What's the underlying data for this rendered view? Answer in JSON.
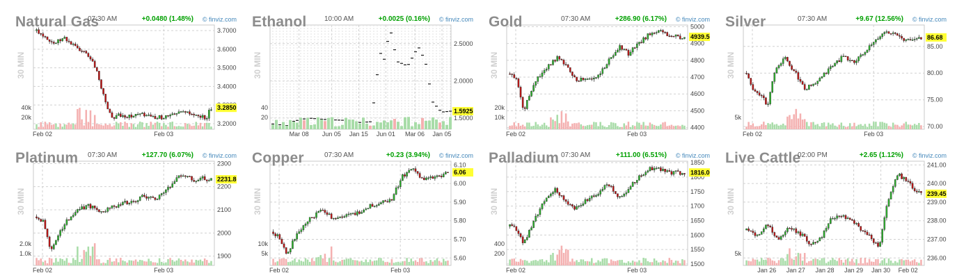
{
  "brand_label": "© finviz.com",
  "side_label": "30 MIN",
  "colors": {
    "up": "#2fb52f",
    "down": "#c41616",
    "vol_up": "#a8dca8",
    "vol_down": "#f4b0b0",
    "highlight": "#ffff33"
  },
  "chart_data": [
    {
      "type": "candlestick",
      "title": "Natural Gas",
      "time": "07:30 AM",
      "change": "+0.0480 (1.48%)",
      "yticks": [
        "3.7000",
        "3.6000",
        "3.5000",
        "3.4000",
        "3.3000",
        "3.2000"
      ],
      "ylim": [
        3.17,
        3.73
      ],
      "last": "3.2850",
      "last_value": 3.285,
      "xticks": [
        "Feb 02",
        "Feb 03"
      ],
      "xtick_pos": [
        0.05,
        0.72
      ],
      "vticks": [
        "40k",
        "20k"
      ],
      "path": [
        [
          0,
          3.7
        ],
        [
          0.05,
          3.67
        ],
        [
          0.1,
          3.63
        ],
        [
          0.16,
          3.66
        ],
        [
          0.21,
          3.62
        ],
        [
          0.28,
          3.58
        ],
        [
          0.34,
          3.5
        ],
        [
          0.4,
          3.3
        ],
        [
          0.44,
          3.22
        ],
        [
          0.47,
          3.25
        ],
        [
          0.53,
          3.24
        ],
        [
          0.6,
          3.25
        ],
        [
          0.68,
          3.23
        ],
        [
          0.76,
          3.24
        ],
        [
          0.84,
          3.26
        ],
        [
          0.92,
          3.24
        ],
        [
          0.97,
          3.23
        ],
        [
          1.0,
          3.285
        ]
      ]
    },
    {
      "type": "candlestick",
      "title": "Ethanol",
      "time": "10:00 AM",
      "change": "+0.0025 (0.16%)",
      "yticks": [
        "2.5000",
        "2.0000",
        "1.5000"
      ],
      "ylim": [
        1.35,
        2.75
      ],
      "last": "1.5925",
      "last_value": 1.5925,
      "xticks": [
        "Mar 08",
        "Jun 05",
        "Jan 15",
        "Jun 01",
        "Mar 06",
        "Jan 05"
      ],
      "xtick_pos": [
        0.16,
        0.34,
        0.49,
        0.64,
        0.8,
        0.95
      ],
      "vticks": [
        "40",
        "20"
      ],
      "path": [
        [
          0,
          1.42
        ],
        [
          0.08,
          1.4
        ],
        [
          0.12,
          1.46
        ],
        [
          0.2,
          1.5
        ],
        [
          0.3,
          1.48
        ],
        [
          0.4,
          1.47
        ],
        [
          0.48,
          1.44
        ],
        [
          0.55,
          1.45
        ],
        [
          0.58,
          1.86
        ],
        [
          0.6,
          2.4
        ],
        [
          0.63,
          2.28
        ],
        [
          0.66,
          2.72
        ],
        [
          0.7,
          2.26
        ],
        [
          0.76,
          2.2
        ],
        [
          0.82,
          2.46
        ],
        [
          0.86,
          2.26
        ],
        [
          0.9,
          1.72
        ],
        [
          0.95,
          1.58
        ],
        [
          1.0,
          1.5925
        ]
      ]
    },
    {
      "type": "candlestick",
      "title": "Gold",
      "time": "07:30 AM",
      "change": "+286.90 (6.17%)",
      "yticks": [
        "5000",
        "4900",
        "4800",
        "4700",
        "4600",
        "4500",
        "4400"
      ],
      "ylim": [
        4390,
        5010
      ],
      "last": "4939.50",
      "last_value": 4939.5,
      "xticks": [
        "Feb 02",
        "Feb 03"
      ],
      "xtick_pos": [
        0.05,
        0.72
      ],
      "vticks": [
        "20k",
        "10k"
      ],
      "path": [
        [
          0,
          4720
        ],
        [
          0.04,
          4690
        ],
        [
          0.08,
          4500
        ],
        [
          0.12,
          4620
        ],
        [
          0.16,
          4700
        ],
        [
          0.22,
          4770
        ],
        [
          0.28,
          4820
        ],
        [
          0.33,
          4750
        ],
        [
          0.38,
          4680
        ],
        [
          0.45,
          4690
        ],
        [
          0.52,
          4720
        ],
        [
          0.58,
          4820
        ],
        [
          0.63,
          4880
        ],
        [
          0.68,
          4840
        ],
        [
          0.74,
          4900
        ],
        [
          0.8,
          4960
        ],
        [
          0.85,
          4980
        ],
        [
          0.9,
          4950
        ],
        [
          0.95,
          4940
        ],
        [
          1.0,
          4939.5
        ]
      ]
    },
    {
      "type": "candlestick",
      "title": "Silver",
      "time": "07:30 AM",
      "change": "+9.67 (12.56%)",
      "yticks": [
        "85.00",
        "80.00",
        "75.00",
        "70.00"
      ],
      "ylim": [
        69.5,
        89
      ],
      "last": "86.68",
      "last_value": 86.68,
      "xticks": [
        "Feb 02",
        "Feb 03"
      ],
      "xtick_pos": [
        0.05,
        0.72
      ],
      "vticks": [
        "5k"
      ],
      "path": [
        [
          0,
          80
        ],
        [
          0.04,
          77
        ],
        [
          0.08,
          76
        ],
        [
          0.12,
          74
        ],
        [
          0.16,
          80
        ],
        [
          0.22,
          83
        ],
        [
          0.28,
          80
        ],
        [
          0.33,
          77
        ],
        [
          0.4,
          78
        ],
        [
          0.48,
          81
        ],
        [
          0.55,
          83
        ],
        [
          0.62,
          82
        ],
        [
          0.68,
          84
        ],
        [
          0.74,
          86
        ],
        [
          0.8,
          88
        ],
        [
          0.86,
          87
        ],
        [
          0.92,
          86
        ],
        [
          1.0,
          86.68
        ]
      ]
    },
    {
      "type": "candlestick",
      "title": "Platinum",
      "time": "07:30 AM",
      "change": "+127.70 (6.07%)",
      "yticks": [
        "2300",
        "2200",
        "2100",
        "2000",
        "1900"
      ],
      "ylim": [
        1860,
        2310
      ],
      "last": "2231.80",
      "last_value": 2231.8,
      "xticks": [
        "Feb 02",
        "Feb 03"
      ],
      "xtick_pos": [
        0.05,
        0.72
      ],
      "vticks": [
        "2.0k",
        "1.0k"
      ],
      "path": [
        [
          0,
          2070
        ],
        [
          0.04,
          2050
        ],
        [
          0.08,
          1930
        ],
        [
          0.12,
          1990
        ],
        [
          0.18,
          2060
        ],
        [
          0.24,
          2100
        ],
        [
          0.3,
          2120
        ],
        [
          0.36,
          2090
        ],
        [
          0.42,
          2110
        ],
        [
          0.5,
          2130
        ],
        [
          0.56,
          2140
        ],
        [
          0.62,
          2160
        ],
        [
          0.68,
          2140
        ],
        [
          0.74,
          2180
        ],
        [
          0.8,
          2240
        ],
        [
          0.85,
          2250
        ],
        [
          0.9,
          2230
        ],
        [
          0.95,
          2235
        ],
        [
          1.0,
          2231.8
        ]
      ]
    },
    {
      "type": "candlestick",
      "title": "Copper",
      "time": "07:30 AM",
      "change": "+0.23 (3.94%)",
      "yticks": [
        "6.10",
        "6.00",
        "5.90",
        "5.80",
        "5.70",
        "5.60"
      ],
      "ylim": [
        5.56,
        6.12
      ],
      "last": "6.06",
      "last_value": 6.06,
      "xticks": [
        "Feb 02",
        "Feb 03"
      ],
      "xtick_pos": [
        0.05,
        0.72
      ],
      "vticks": [
        "10k",
        "5k"
      ],
      "path": [
        [
          0,
          5.74
        ],
        [
          0.04,
          5.7
        ],
        [
          0.08,
          5.62
        ],
        [
          0.13,
          5.72
        ],
        [
          0.2,
          5.8
        ],
        [
          0.28,
          5.86
        ],
        [
          0.33,
          5.82
        ],
        [
          0.4,
          5.82
        ],
        [
          0.48,
          5.84
        ],
        [
          0.55,
          5.88
        ],
        [
          0.62,
          5.9
        ],
        [
          0.68,
          5.92
        ],
        [
          0.74,
          6.04
        ],
        [
          0.8,
          6.08
        ],
        [
          0.86,
          6.02
        ],
        [
          0.92,
          6.03
        ],
        [
          1.0,
          6.06
        ]
      ]
    },
    {
      "type": "candlestick",
      "title": "Palladium",
      "time": "07:30 AM",
      "change": "+111.00 (6.51%)",
      "yticks": [
        "1850",
        "1800",
        "1750",
        "1700",
        "1650",
        "1600",
        "1550",
        "1500"
      ],
      "ylim": [
        1495,
        1855
      ],
      "last": "1816.00",
      "last_value": 1816,
      "xticks": [
        "Feb 02",
        "Feb 03"
      ],
      "xtick_pos": [
        0.05,
        0.72
      ],
      "vticks": [
        "400",
        "200"
      ],
      "path": [
        [
          0,
          1630
        ],
        [
          0.04,
          1620
        ],
        [
          0.08,
          1570
        ],
        [
          0.14,
          1650
        ],
        [
          0.2,
          1720
        ],
        [
          0.26,
          1760
        ],
        [
          0.32,
          1710
        ],
        [
          0.38,
          1690
        ],
        [
          0.44,
          1720
        ],
        [
          0.5,
          1740
        ],
        [
          0.56,
          1780
        ],
        [
          0.62,
          1730
        ],
        [
          0.68,
          1760
        ],
        [
          0.74,
          1800
        ],
        [
          0.8,
          1830
        ],
        [
          0.86,
          1825
        ],
        [
          0.92,
          1815
        ],
        [
          1.0,
          1816
        ]
      ]
    },
    {
      "type": "candlestick",
      "title": "Live Cattle",
      "time": "02:00 PM",
      "change": "+2.65 (1.12%)",
      "yticks": [
        "241.00",
        "240.00",
        "239.00",
        "238.00",
        "237.00",
        "236.00"
      ],
      "ylim": [
        235.6,
        241.2
      ],
      "last": "239.45",
      "last_value": 239.45,
      "xticks": [
        "Jan 26",
        "Jan 27",
        "Jan 28",
        "Jan 29",
        "Jan 30",
        "Feb 02"
      ],
      "xtick_pos": [
        0.13,
        0.29,
        0.45,
        0.61,
        0.76,
        0.91
      ],
      "vticks": [
        "5k"
      ],
      "path": [
        [
          0,
          237.5
        ],
        [
          0.06,
          237.2
        ],
        [
          0.12,
          237.8
        ],
        [
          0.18,
          237.0
        ],
        [
          0.24,
          237.6
        ],
        [
          0.3,
          237.4
        ],
        [
          0.36,
          236.8
        ],
        [
          0.42,
          237.0
        ],
        [
          0.48,
          238.0
        ],
        [
          0.54,
          238.3
        ],
        [
          0.6,
          238.0
        ],
        [
          0.66,
          237.5
        ],
        [
          0.72,
          237.0
        ],
        [
          0.76,
          236.5
        ],
        [
          0.8,
          238.6
        ],
        [
          0.86,
          240.5
        ],
        [
          0.92,
          240.2
        ],
        [
          0.96,
          239.6
        ],
        [
          1.0,
          239.45
        ]
      ]
    }
  ]
}
